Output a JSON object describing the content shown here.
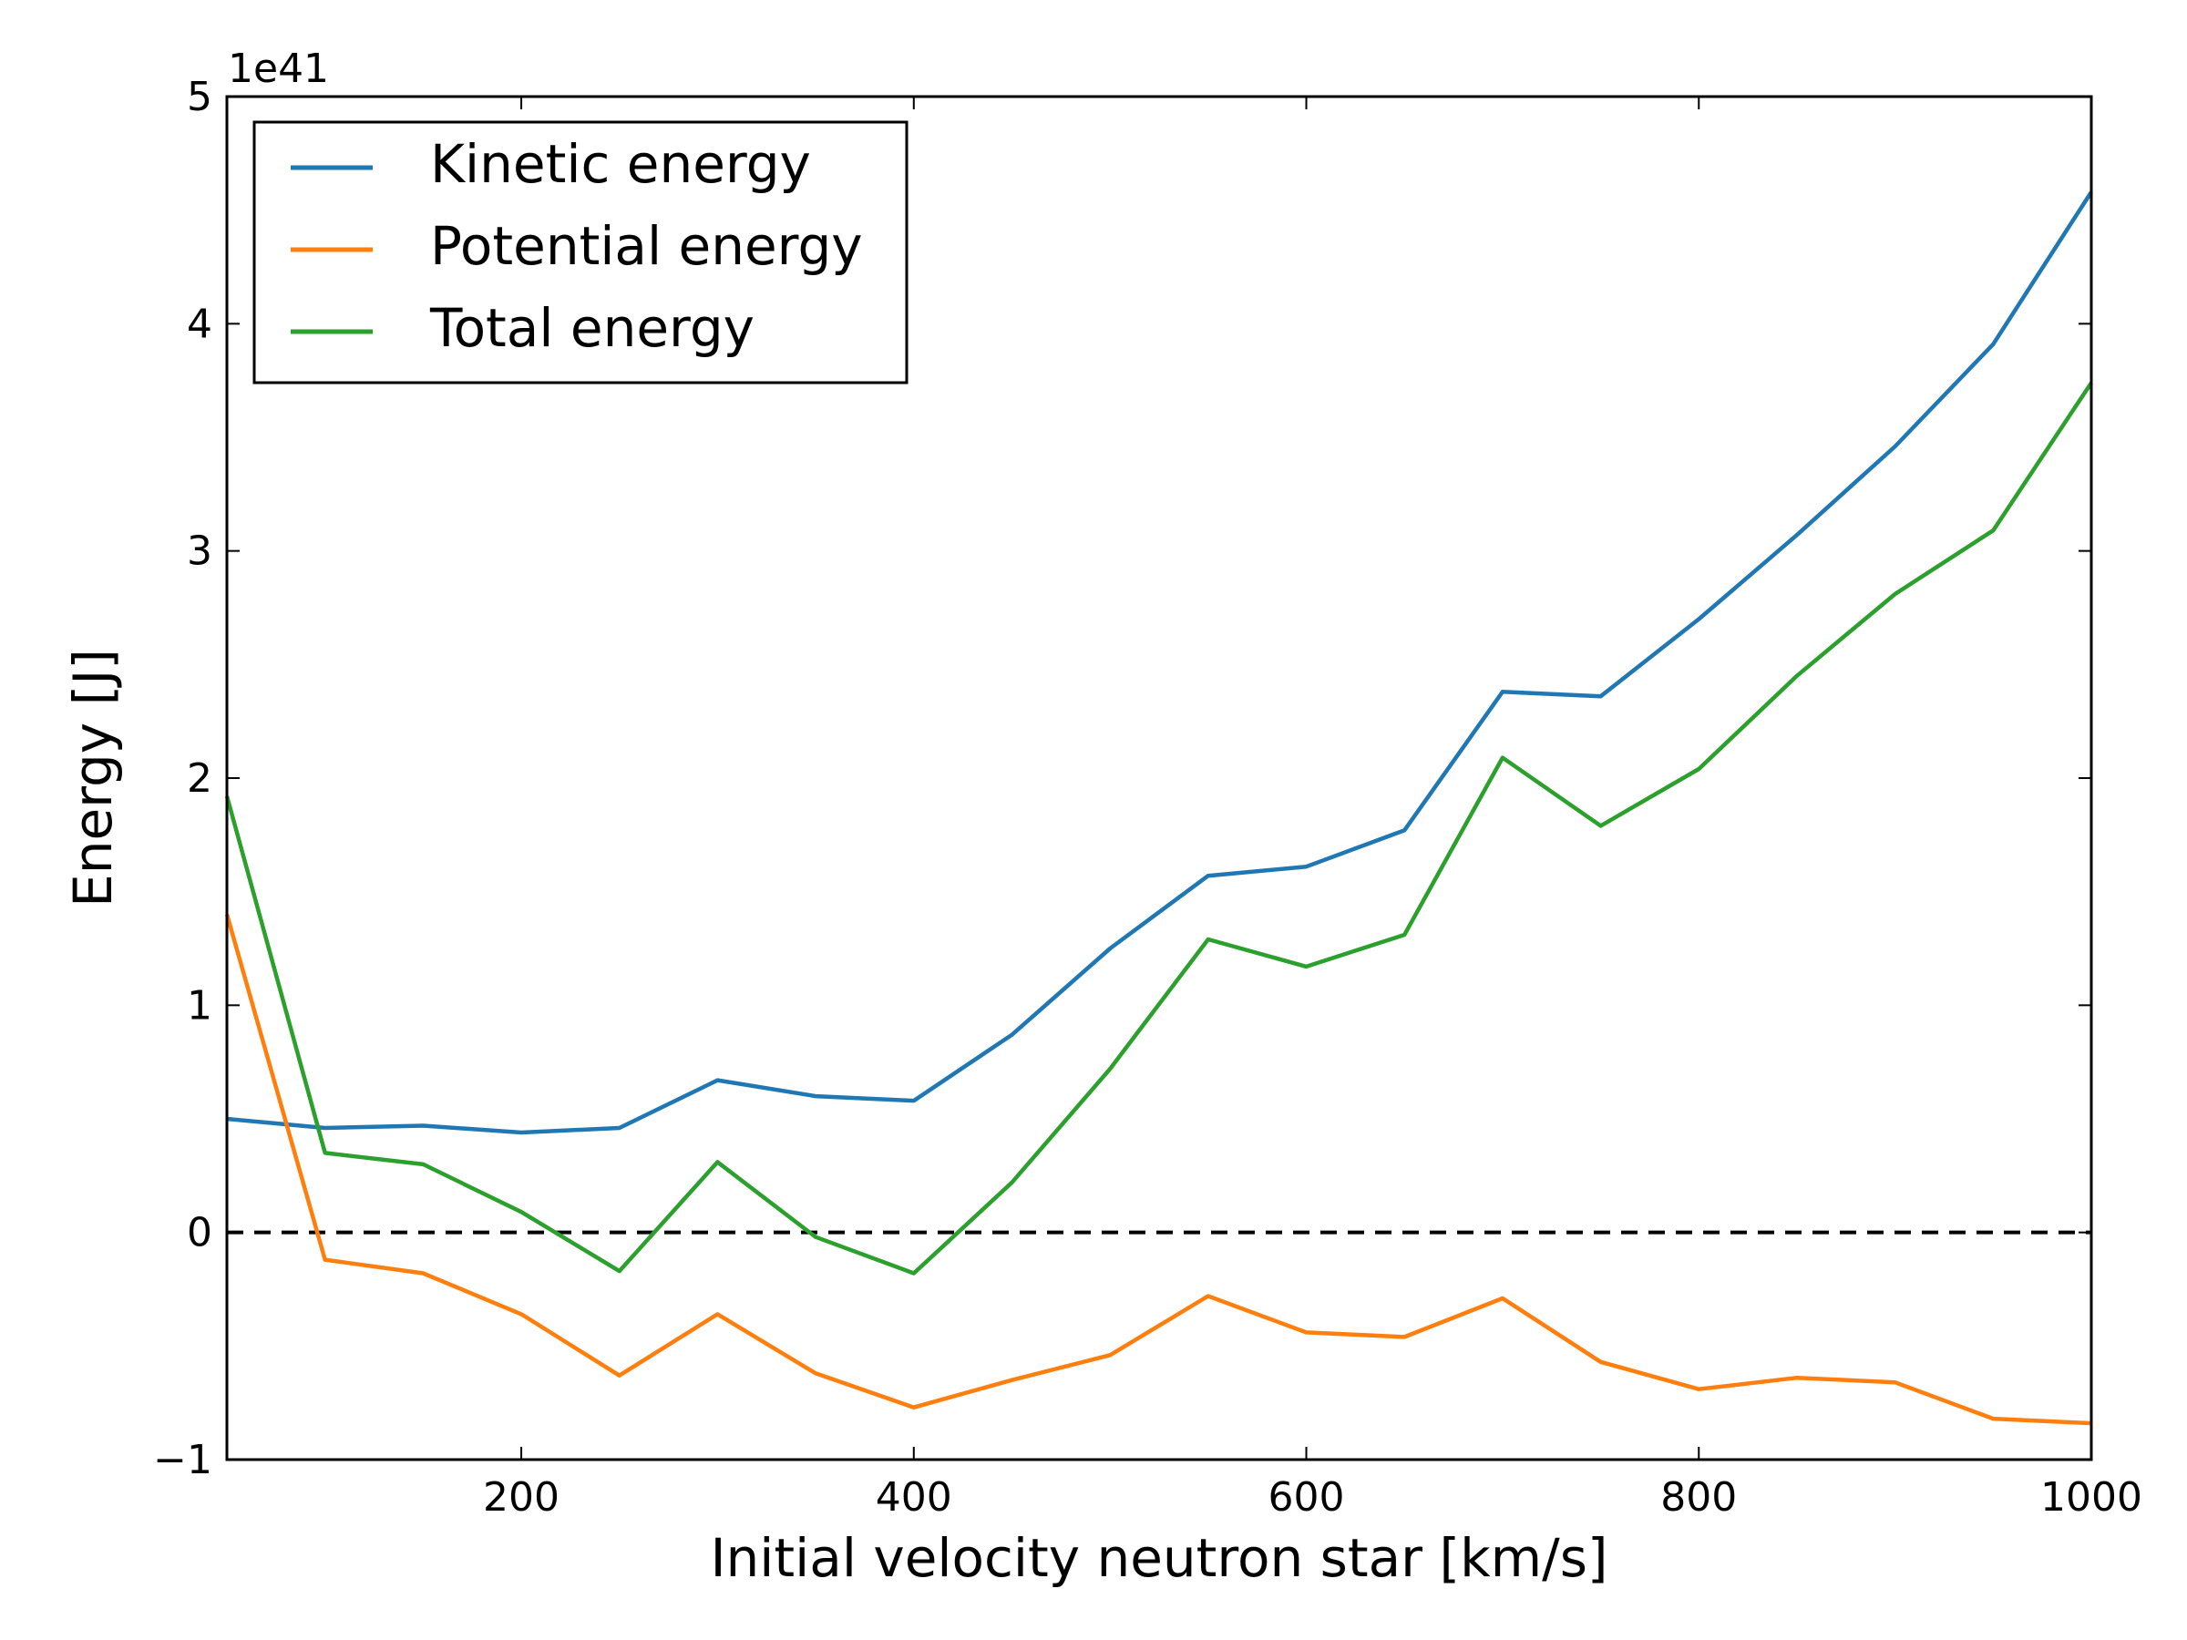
{
  "chart_data": {
    "type": "line",
    "xlabel": "Initial velocity neutron star [km/s]",
    "ylabel": "Energy [J]",
    "offset_text": "1e41",
    "xlim": [
      50,
      1000
    ],
    "ylim": [
      -1,
      5
    ],
    "x_ticks": [
      200,
      400,
      600,
      800,
      1000
    ],
    "y_ticks": [
      -1,
      0,
      1,
      2,
      3,
      4,
      5
    ],
    "y_tick_labels": [
      "−1",
      "0",
      "1",
      "2",
      "3",
      "4",
      "5"
    ],
    "reference_line": {
      "y": 0,
      "style": "dashed",
      "color": "#000000"
    },
    "legend_position": "upper-left",
    "x": [
      50,
      100,
      150,
      200,
      250,
      300,
      350,
      400,
      450,
      500,
      550,
      600,
      650,
      700,
      750,
      800,
      850,
      900,
      950,
      1000
    ],
    "series": [
      {
        "name": "Kinetic energy",
        "color": "#1f77b4",
        "values": [
          0.5,
          0.46,
          0.47,
          0.44,
          0.46,
          0.67,
          0.6,
          0.58,
          0.87,
          1.25,
          1.57,
          1.61,
          1.77,
          2.38,
          2.36,
          2.7,
          3.07,
          3.46,
          3.91,
          4.58
        ]
      },
      {
        "name": "Potential energy",
        "color": "#ff7f0e",
        "values": [
          1.4,
          -0.12,
          -0.18,
          -0.36,
          -0.63,
          -0.36,
          -0.62,
          -0.77,
          -0.65,
          -0.54,
          -0.28,
          -0.44,
          -0.46,
          -0.29,
          -0.57,
          -0.69,
          -0.64,
          -0.66,
          -0.82,
          -0.84
        ]
      },
      {
        "name": "Total energy",
        "color": "#2ca02c",
        "values": [
          1.92,
          0.35,
          0.3,
          0.09,
          -0.17,
          0.31,
          -0.02,
          -0.18,
          0.22,
          0.72,
          1.29,
          1.17,
          1.31,
          2.09,
          1.79,
          2.04,
          2.45,
          2.81,
          3.09,
          3.74
        ]
      }
    ]
  }
}
